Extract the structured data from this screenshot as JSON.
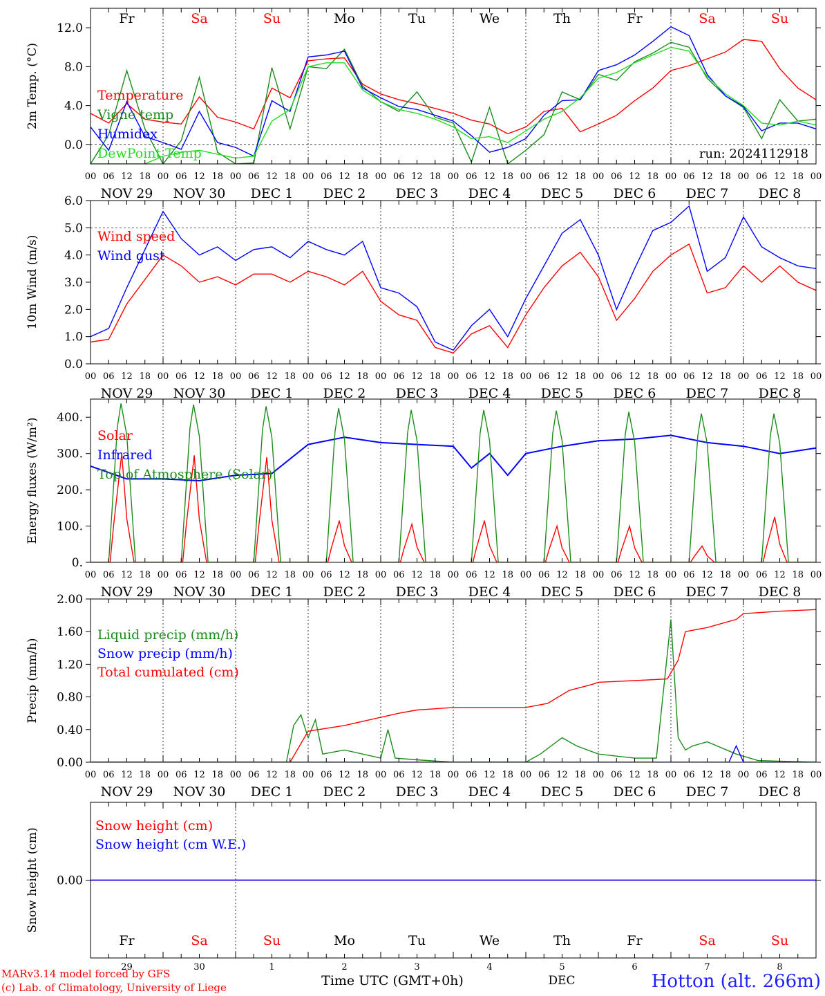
{
  "colors": {
    "red": "#ff0000",
    "green": "#1a8c1a",
    "blue": "#0000ff",
    "lightgreen": "#22dd22",
    "weekend": "#ff0000",
    "black": "#000000"
  },
  "days_top": [
    {
      "label": "Fr",
      "weekend": false
    },
    {
      "label": "Sa",
      "weekend": true
    },
    {
      "label": "Su",
      "weekend": true
    },
    {
      "label": "Mo",
      "weekend": false
    },
    {
      "label": "Tu",
      "weekend": false
    },
    {
      "label": "We",
      "weekend": false
    },
    {
      "label": "Th",
      "weekend": false
    },
    {
      "label": "Fr",
      "weekend": false
    },
    {
      "label": "Sa",
      "weekend": true
    },
    {
      "label": "Su",
      "weekend": true
    }
  ],
  "date_labels": [
    "NOV 29",
    "NOV 30",
    "DEC  1",
    "DEC  2",
    "DEC  3",
    "DEC  4",
    "DEC  5",
    "DEC  6",
    "DEC  7",
    "DEC  8"
  ],
  "hour_ticks": [
    "00",
    "06",
    "12",
    "18"
  ],
  "bottom_day_numbers": [
    "29",
    "30",
    "1",
    "2",
    "3",
    "4",
    "5",
    "6",
    "7",
    "8"
  ],
  "bottom_month": "DEC",
  "footer": {
    "model": "MARv3.14 model forced by GFS",
    "lab": "(c) Lab. of Climatology, University of Liege",
    "axis_title": "Time UTC (GMT+0h)",
    "station": "Hotton (alt. 266m)"
  },
  "chart_data": [
    {
      "type": "line",
      "ylabel": "2m Temp. (°C)",
      "ylim": [
        -2,
        14
      ],
      "yticks": [
        "0.0",
        "4.0",
        "8.0",
        "12.0"
      ],
      "ytick_values": [
        0,
        4,
        8,
        12
      ],
      "ref_lines": [
        0
      ],
      "annotation": "run: 2024112918",
      "x_days": [
        0,
        0.25,
        0.5,
        0.75,
        1,
        1.25,
        1.5,
        1.75,
        2,
        2.25,
        2.5,
        2.75,
        3,
        3.25,
        3.5,
        3.75,
        4,
        4.25,
        4.5,
        4.75,
        5,
        5.25,
        5.5,
        5.75,
        6,
        6.25,
        6.5,
        6.75,
        7,
        7.25,
        7.5,
        7.75,
        8,
        8.25,
        8.5,
        8.75,
        9,
        9.25,
        9.5,
        9.75,
        10
      ],
      "series": [
        {
          "name": "Temperature",
          "color": "red",
          "values": [
            3.2,
            2.2,
            4.2,
            2.6,
            2.3,
            2.1,
            4.9,
            2.8,
            2.3,
            1.6,
            5.8,
            4.8,
            8.6,
            8.8,
            8.9,
            6.2,
            5.2,
            4.6,
            4.2,
            3.7,
            3.2,
            2.5,
            2.1,
            1.1,
            1.8,
            3.4,
            3.7,
            1.3,
            2.1,
            3.0,
            4.5,
            5.8,
            7.6,
            8.1,
            8.8,
            9.5,
            10.8,
            10.6,
            7.8,
            5.8,
            4.6
          ]
        },
        {
          "name": "Vigne temp",
          "color": "green",
          "values": [
            -2,
            1.0,
            7.6,
            1.6,
            -2,
            0.4,
            6.9,
            -0.8,
            -2,
            -1.9,
            7.9,
            1.6,
            8.0,
            7.8,
            9.8,
            6.0,
            4.4,
            3.4,
            5.4,
            2.8,
            2.2,
            -1.8,
            3.8,
            -2,
            -0.6,
            1.0,
            5.4,
            4.6,
            7.2,
            6.6,
            8.5,
            9.4,
            10.5,
            10.0,
            6.8,
            5.0,
            3.8,
            0.6,
            4.6,
            2.4,
            2.6
          ]
        },
        {
          "name": "Humidex",
          "color": "blue",
          "values": [
            1.8,
            -0.6,
            4.4,
            0.8,
            0.2,
            -0.5,
            3.4,
            0.2,
            -0.3,
            -1.2,
            4.5,
            3.4,
            9.0,
            9.2,
            9.6,
            5.8,
            4.8,
            3.9,
            3.6,
            3.0,
            2.4,
            0.9,
            -0.8,
            -0.3,
            0.6,
            3.0,
            4.5,
            4.6,
            7.6,
            8.2,
            9.2,
            10.6,
            12.1,
            11.2,
            7.2,
            5.0,
            3.9,
            1.4,
            2.2,
            2.2,
            1.6
          ]
        },
        {
          "name": "DewPoint Temp",
          "color": "lightgreen",
          "values": [
            -2,
            -2,
            -2,
            -2,
            -1.2,
            -0.8,
            -0.6,
            -1.0,
            -1.4,
            -1.2,
            2.4,
            3.6,
            8.0,
            8.4,
            8.4,
            5.6,
            4.4,
            3.6,
            3.2,
            2.6,
            1.8,
            0.6,
            0.8,
            0.2,
            1.4,
            2.6,
            3.4,
            4.8,
            6.8,
            7.4,
            8.4,
            9.2,
            10.0,
            9.6,
            7.0,
            5.2,
            4.0,
            2.2,
            2.0,
            2.4,
            2.0
          ]
        }
      ]
    },
    {
      "type": "line",
      "ylabel": "10m Wind (m/s)",
      "ylim": [
        0,
        6
      ],
      "yticks": [
        "0.0",
        "1.0",
        "2.0",
        "3.0",
        "4.0",
        "5.0",
        "6.0"
      ],
      "ytick_values": [
        0,
        1,
        2,
        3,
        4,
        5,
        6
      ],
      "ref_lines": [
        5
      ],
      "x_days": [
        0,
        0.25,
        0.5,
        0.75,
        1,
        1.25,
        1.5,
        1.75,
        2,
        2.25,
        2.5,
        2.75,
        3,
        3.25,
        3.5,
        3.75,
        4,
        4.25,
        4.5,
        4.75,
        5,
        5.25,
        5.5,
        5.75,
        6,
        6.25,
        6.5,
        6.75,
        7,
        7.25,
        7.5,
        7.75,
        8,
        8.25,
        8.5,
        8.75,
        9,
        9.25,
        9.5,
        9.75,
        10
      ],
      "series": [
        {
          "name": "Wind speed",
          "color": "red",
          "values": [
            0.8,
            0.9,
            2.2,
            3.1,
            4.0,
            3.6,
            3.0,
            3.2,
            2.9,
            3.3,
            3.3,
            3.0,
            3.4,
            3.2,
            2.9,
            3.4,
            2.3,
            1.8,
            1.6,
            0.6,
            0.4,
            1.1,
            1.4,
            0.6,
            1.8,
            2.8,
            3.6,
            4.1,
            3.2,
            1.6,
            2.4,
            3.4,
            4.0,
            4.4,
            2.6,
            2.8,
            3.6,
            3.0,
            3.6,
            3.0,
            2.7
          ]
        },
        {
          "name": "Wind gust",
          "color": "blue",
          "values": [
            1.0,
            1.3,
            2.8,
            4.2,
            5.6,
            4.6,
            4.0,
            4.3,
            3.8,
            4.2,
            4.3,
            3.9,
            4.5,
            4.2,
            4.0,
            4.5,
            2.8,
            2.6,
            2.1,
            0.8,
            0.5,
            1.4,
            2.0,
            1.0,
            2.4,
            3.6,
            4.8,
            5.3,
            4.0,
            2.0,
            3.5,
            4.9,
            5.2,
            5.8,
            3.4,
            3.9,
            5.4,
            4.3,
            3.9,
            3.6,
            3.5
          ]
        }
      ]
    },
    {
      "type": "line",
      "ylabel": "Energy fluxes (W/m²)",
      "ylim": [
        0,
        450
      ],
      "yticks": [
        "0.",
        "100.",
        "200.",
        "300.",
        "400."
      ],
      "ytick_values": [
        0,
        100,
        200,
        300,
        400
      ],
      "ref_lines": [],
      "series": [
        {
          "name": "Solar",
          "color": "red",
          "peaks": [
            300,
            295,
            290,
            115,
            105,
            115,
            100,
            100,
            45,
            125
          ]
        },
        {
          "name": "Infrared",
          "color": "blue",
          "x_days": [
            0,
            0.5,
            1,
            1.5,
            2,
            2.5,
            3,
            3.5,
            4,
            4.5,
            5,
            5.25,
            5.5,
            5.75,
            6,
            6.5,
            7,
            7.5,
            8,
            8.5,
            9,
            9.5,
            10
          ],
          "values": [
            265,
            230,
            230,
            225,
            240,
            245,
            325,
            345,
            330,
            325,
            320,
            260,
            300,
            240,
            300,
            320,
            335,
            340,
            350,
            330,
            320,
            300,
            315
          ]
        },
        {
          "name": "Top of Atmosphere (Solar)",
          "color": "green",
          "peaks": [
            438,
            435,
            430,
            425,
            420,
            420,
            418,
            415,
            410,
            410
          ]
        }
      ]
    },
    {
      "type": "line",
      "ylabel": "Precip (mm/h)",
      "ylim": [
        0,
        2
      ],
      "yticks": [
        "0.00",
        "0.40",
        "0.80",
        "1.20",
        "1.60",
        "2.00"
      ],
      "ytick_values": [
        0,
        0.4,
        0.8,
        1.2,
        1.6,
        2.0
      ],
      "ref_lines": [],
      "series": [
        {
          "name": "Liquid precip (mm/h)",
          "color": "green",
          "x_days": [
            0,
            2.7,
            2.8,
            2.9,
            3.0,
            3.1,
            3.2,
            3.5,
            4.0,
            4.1,
            4.2,
            4.5,
            5.0,
            6.0,
            6.2,
            6.5,
            6.7,
            7.0,
            7.5,
            7.8,
            7.9,
            8.0,
            8.1,
            8.2,
            8.3,
            8.5,
            8.9,
            9.2,
            10
          ],
          "values": [
            0,
            0,
            0.45,
            0.58,
            0.3,
            0.52,
            0.1,
            0.15,
            0.05,
            0.4,
            0.05,
            0.03,
            0,
            0,
            0.1,
            0.3,
            0.2,
            0.1,
            0.05,
            0.05,
            0.9,
            1.75,
            0.3,
            0.15,
            0.2,
            0.25,
            0.1,
            0.02,
            0
          ]
        },
        {
          "name": "Snow precip (mm/h)",
          "color": "blue",
          "x_days": [
            0,
            8.8,
            8.9,
            9.0,
            10
          ],
          "values": [
            0,
            0,
            0.2,
            0,
            0
          ]
        },
        {
          "name": "Total cumulated (cm)",
          "color": "red",
          "x_days": [
            0,
            2.75,
            3.0,
            3.5,
            4.0,
            4.25,
            4.5,
            5.0,
            5.5,
            6.0,
            6.3,
            6.6,
            6.9,
            7.0,
            7.5,
            7.95,
            8.1,
            8.2,
            8.5,
            8.9,
            9.0,
            9.5,
            10
          ],
          "values": [
            0,
            0,
            0.38,
            0.45,
            0.55,
            0.6,
            0.64,
            0.67,
            0.67,
            0.67,
            0.72,
            0.88,
            0.95,
            0.98,
            1.0,
            1.02,
            1.25,
            1.6,
            1.65,
            1.75,
            1.82,
            1.85,
            1.87
          ]
        }
      ]
    },
    {
      "type": "line",
      "ylabel": "Snow height (cm)",
      "yticks": [
        "0.00"
      ],
      "ytick_values": [
        0
      ],
      "ref_lines": [],
      "series": [
        {
          "name": "Snow height (cm)",
          "color": "red",
          "values": [
            0,
            0
          ]
        },
        {
          "name": "Snow height (cm W.E.)",
          "color": "blue",
          "values": [
            0,
            0
          ]
        }
      ]
    }
  ]
}
